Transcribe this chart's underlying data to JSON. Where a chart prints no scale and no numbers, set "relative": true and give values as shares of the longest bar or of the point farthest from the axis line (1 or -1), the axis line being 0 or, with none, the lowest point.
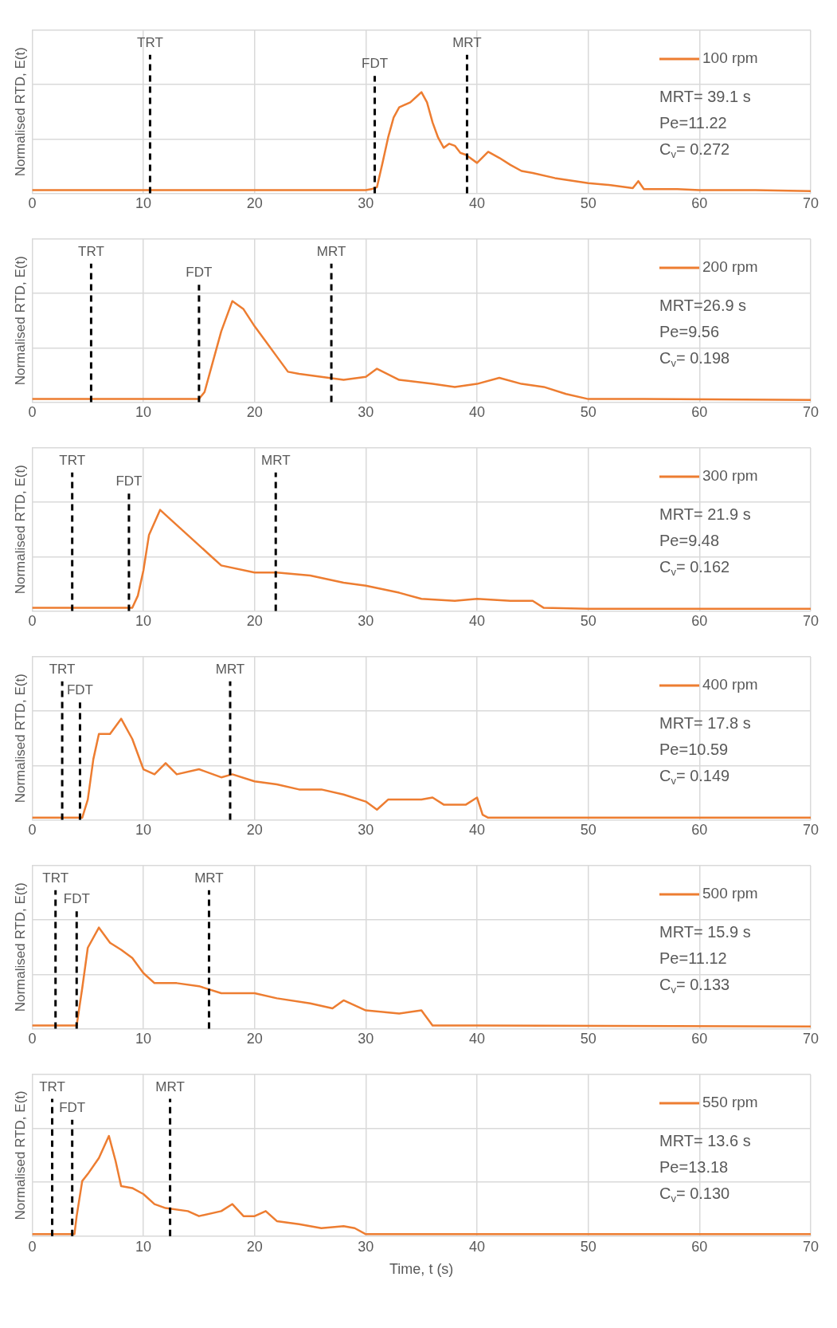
{
  "chart_data": [
    {
      "type": "line",
      "relative": true,
      "ylabel": "Normalised RTD, E(t)",
      "xlim": [
        0,
        70
      ],
      "xticks": [
        0,
        10,
        20,
        30,
        40,
        50,
        60,
        70
      ],
      "grid": true,
      "legend": "top right",
      "marker": "none",
      "line_style": "solid",
      "series": [
        {
          "name": "100 rpm",
          "color": "#ed7d31",
          "x": [
            0,
            10,
            20,
            30,
            30.5,
            31,
            31.5,
            32,
            32.5,
            33,
            34,
            34.5,
            35,
            35.5,
            36,
            36.5,
            37,
            37.5,
            38,
            38.5,
            39,
            40,
            41,
            42,
            43,
            44,
            45,
            47,
            50,
            52,
            54,
            54.5,
            55,
            58,
            60,
            65,
            70
          ],
          "values": [
            0.03,
            0.03,
            0.03,
            0.03,
            0.04,
            0.06,
            0.3,
            0.55,
            0.75,
            0.85,
            0.9,
            0.95,
            1.0,
            0.9,
            0.7,
            0.55,
            0.45,
            0.49,
            0.47,
            0.4,
            0.38,
            0.3,
            0.41,
            0.35,
            0.28,
            0.22,
            0.2,
            0.15,
            0.1,
            0.08,
            0.05,
            0.12,
            0.04,
            0.04,
            0.03,
            0.03,
            0.02
          ]
        }
      ],
      "ref_lines": [
        {
          "axis": "x",
          "value": 10.6,
          "label": "TRT",
          "color": "#000000",
          "line_style": "dashed"
        },
        {
          "axis": "x",
          "value": 30.8,
          "label": "FDT",
          "color": "#000000",
          "line_style": "dashed"
        },
        {
          "axis": "x",
          "value": 39.1,
          "label": "MRT",
          "color": "#000000",
          "line_style": "dashed"
        }
      ],
      "annotations": [
        "MRT= 39.1 s",
        "Pe=11.22",
        "C$_{v}$= 0.272"
      ]
    },
    {
      "type": "line",
      "relative": true,
      "ylabel": "Normalised RTD, E(t)",
      "xlim": [
        0,
        70
      ],
      "xticks": [
        0,
        10,
        20,
        30,
        40,
        50,
        60,
        70
      ],
      "grid": true,
      "legend": "top right",
      "marker": "none",
      "line_style": "solid",
      "series": [
        {
          "name": "200 rpm",
          "color": "#ed7d31",
          "x": [
            0,
            10,
            15,
            15.5,
            16,
            17,
            18,
            19,
            20,
            21,
            22,
            23,
            24,
            26,
            28,
            30,
            31,
            33,
            36,
            38,
            40,
            42,
            44,
            46,
            48,
            50,
            55,
            70
          ],
          "values": [
            0.03,
            0.03,
            0.03,
            0.1,
            0.3,
            0.7,
            1.0,
            0.92,
            0.75,
            0.6,
            0.45,
            0.3,
            0.28,
            0.25,
            0.22,
            0.25,
            0.33,
            0.22,
            0.18,
            0.15,
            0.18,
            0.24,
            0.18,
            0.15,
            0.08,
            0.03,
            0.03,
            0.02
          ]
        }
      ],
      "ref_lines": [
        {
          "axis": "x",
          "value": 5.3,
          "label": "TRT",
          "color": "#000000",
          "line_style": "dashed"
        },
        {
          "axis": "x",
          "value": 15,
          "label": "FDT",
          "color": "#000000",
          "line_style": "dashed"
        },
        {
          "axis": "x",
          "value": 26.9,
          "label": "MRT",
          "color": "#000000",
          "line_style": "dashed"
        }
      ],
      "annotations": [
        "MRT=26.9 s",
        "Pe=9.56",
        "C$_{v}$= 0.198"
      ]
    },
    {
      "type": "line",
      "relative": true,
      "ylabel": "Normalised RTD, E(t)",
      "xlim": [
        0,
        70
      ],
      "xticks": [
        0,
        10,
        20,
        30,
        40,
        50,
        60,
        70
      ],
      "grid": true,
      "legend": "top right",
      "marker": "none",
      "line_style": "solid",
      "series": [
        {
          "name": "300 rpm",
          "color": "#ed7d31",
          "x": [
            0,
            5,
            9,
            9.5,
            10,
            10.5,
            11.5,
            12.5,
            14,
            16,
            17,
            20,
            22,
            25,
            28,
            30,
            33,
            35,
            38,
            40,
            43,
            45,
            46,
            50,
            70
          ],
          "values": [
            0.03,
            0.03,
            0.03,
            0.15,
            0.4,
            0.75,
            1.0,
            0.9,
            0.75,
            0.55,
            0.45,
            0.38,
            0.38,
            0.35,
            0.28,
            0.25,
            0.18,
            0.12,
            0.1,
            0.12,
            0.1,
            0.1,
            0.03,
            0.02,
            0.02
          ]
        }
      ],
      "ref_lines": [
        {
          "axis": "x",
          "value": 3.6,
          "label": "TRT",
          "color": "#000000",
          "line_style": "dashed"
        },
        {
          "axis": "x",
          "value": 8.7,
          "label": "FDT",
          "color": "#000000",
          "line_style": "dashed"
        },
        {
          "axis": "x",
          "value": 21.9,
          "label": "MRT",
          "color": "#000000",
          "line_style": "dashed"
        }
      ],
      "annotations": [
        "MRT= 21.9 s",
        "Pe=9.48",
        "C$_{v}$= 0.162"
      ]
    },
    {
      "type": "line",
      "relative": true,
      "ylabel": "Normalised RTD, E(t)",
      "xlim": [
        0,
        70
      ],
      "xticks": [
        0,
        10,
        20,
        30,
        40,
        50,
        60,
        70
      ],
      "grid": true,
      "legend": "top right",
      "marker": "none",
      "line_style": "solid",
      "series": [
        {
          "name": "400 rpm",
          "color": "#ed7d31",
          "x": [
            0,
            4.5,
            5,
            5.5,
            6,
            7,
            8,
            9,
            10,
            11,
            12,
            13,
            15,
            17,
            18,
            20,
            22,
            24,
            26,
            28,
            30,
            31,
            32,
            35,
            36,
            37,
            39,
            40,
            40.5,
            41,
            50,
            70
          ],
          "values": [
            0.02,
            0.02,
            0.2,
            0.6,
            0.85,
            0.85,
            1.0,
            0.8,
            0.5,
            0.45,
            0.56,
            0.45,
            0.5,
            0.42,
            0.45,
            0.38,
            0.35,
            0.3,
            0.3,
            0.25,
            0.18,
            0.1,
            0.2,
            0.2,
            0.22,
            0.15,
            0.15,
            0.22,
            0.05,
            0.02,
            0.02,
            0.02
          ]
        }
      ],
      "ref_lines": [
        {
          "axis": "x",
          "value": 2.7,
          "label": "TRT",
          "color": "#000000",
          "line_style": "dashed"
        },
        {
          "axis": "x",
          "value": 4.3,
          "label": "FDT",
          "color": "#000000",
          "line_style": "dashed"
        },
        {
          "axis": "x",
          "value": 17.8,
          "label": "MRT",
          "color": "#000000",
          "line_style": "dashed"
        }
      ],
      "annotations": [
        "MRT= 17.8 s",
        "Pe=10.59",
        "C$_{v}$= 0.149"
      ]
    },
    {
      "type": "line",
      "relative": true,
      "ylabel": "Normalised RTD, E(t)",
      "xlim": [
        0,
        70
      ],
      "xticks": [
        0,
        10,
        20,
        30,
        40,
        50,
        60,
        70
      ],
      "grid": true,
      "legend": "top right",
      "marker": "none",
      "line_style": "solid",
      "series": [
        {
          "name": "500 rpm",
          "color": "#ed7d31",
          "x": [
            0,
            4,
            4.5,
            5,
            6,
            7,
            8,
            9,
            10,
            11,
            13,
            15,
            17,
            20,
            22,
            25,
            27,
            28,
            30,
            33,
            35,
            36,
            40,
            70
          ],
          "values": [
            0.03,
            0.03,
            0.4,
            0.8,
            1.0,
            0.85,
            0.78,
            0.7,
            0.55,
            0.45,
            0.45,
            0.42,
            0.35,
            0.35,
            0.3,
            0.25,
            0.2,
            0.28,
            0.18,
            0.15,
            0.18,
            0.03,
            0.03,
            0.02
          ]
        }
      ],
      "ref_lines": [
        {
          "axis": "x",
          "value": 2.1,
          "label": "TRT",
          "color": "#000000",
          "line_style": "dashed"
        },
        {
          "axis": "x",
          "value": 4,
          "label": "FDT",
          "color": "#000000",
          "line_style": "dashed"
        },
        {
          "axis": "x",
          "value": 15.9,
          "label": "MRT",
          "color": "#000000",
          "line_style": "dashed"
        }
      ],
      "annotations": [
        "MRT= 15.9 s",
        "Pe=11.12",
        "C$_{v}$= 0.133"
      ]
    },
    {
      "type": "line",
      "relative": true,
      "ylabel": "Normalised RTD, E(t)",
      "xlabel": "Time, t (s)",
      "xlim": [
        0,
        70
      ],
      "xticks": [
        0,
        10,
        20,
        30,
        40,
        50,
        60,
        70
      ],
      "grid": true,
      "legend": "top right",
      "marker": "none",
      "line_style": "solid",
      "series": [
        {
          "name": "550 rpm",
          "color": "#ed7d31",
          "x": [
            0,
            3.8,
            4,
            4.5,
            5,
            6,
            6.9,
            7.5,
            8,
            9,
            10,
            11,
            12,
            14,
            15,
            17,
            18,
            19,
            20,
            21,
            22,
            24,
            26,
            28,
            29,
            30,
            35,
            70
          ],
          "values": [
            0.02,
            0.02,
            0.2,
            0.55,
            0.62,
            0.78,
            1.0,
            0.75,
            0.5,
            0.48,
            0.42,
            0.32,
            0.28,
            0.25,
            0.2,
            0.25,
            0.32,
            0.2,
            0.2,
            0.25,
            0.15,
            0.12,
            0.08,
            0.1,
            0.08,
            0.02,
            0.02,
            0.02
          ]
        }
      ],
      "ref_lines": [
        {
          "axis": "x",
          "value": 1.8,
          "label": "TRT",
          "color": "#000000",
          "line_style": "dashed"
        },
        {
          "axis": "x",
          "value": 3.6,
          "label": "FDT",
          "color": "#000000",
          "line_style": "dashed"
        },
        {
          "axis": "x",
          "value": 12.4,
          "label": "MRT",
          "color": "#000000",
          "line_style": "dashed"
        }
      ],
      "annotations": [
        "MRT= 13.6 s",
        "Pe=13.18",
        "C$_{v}$= 0.130"
      ]
    }
  ]
}
